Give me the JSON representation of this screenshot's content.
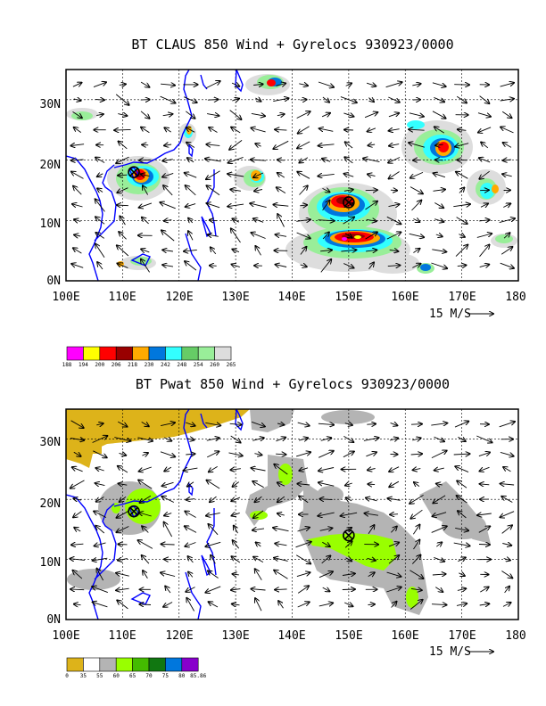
{
  "panels": [
    {
      "title": "BT CLAUS 850 Wind + Gyrelocs 930923/0000",
      "lon_ticks": [
        "100E",
        "110E",
        "120E",
        "130E",
        "140E",
        "150E",
        "160E",
        "170E",
        "180"
      ],
      "lat_ticks": [
        "0N",
        "10N",
        "20N",
        "30N"
      ],
      "wind_ref": "15 M/S",
      "colorbar": {
        "labels": [
          "188",
          "194",
          "200",
          "206",
          "218",
          "230",
          "242",
          "248",
          "254",
          "260",
          "265"
        ],
        "colors": [
          "#ff00ff",
          "#ffff00",
          "#ff0000",
          "#990000",
          "#ffaa00",
          "#0077dd",
          "#33ffff",
          "#66cc66",
          "#99ee99",
          "#dddddd"
        ]
      },
      "gyre_locations": [
        {
          "lon": 112,
          "lat": 18
        },
        {
          "lon": 150,
          "lat": 13
        }
      ]
    },
    {
      "title": "BT Pwat 850 Wind + Gyrelocs 930923/0000",
      "lon_ticks": [
        "100E",
        "110E",
        "120E",
        "130E",
        "140E",
        "150E",
        "160E",
        "170E",
        "180"
      ],
      "lat_ticks": [
        "0N",
        "10N",
        "20N",
        "30N"
      ],
      "wind_ref": "15 M/S",
      "colorbar": {
        "labels": [
          "0",
          "35",
          "55",
          "60",
          "65",
          "70",
          "75",
          "80",
          "85.86"
        ],
        "colors": [
          "#ddb31a",
          "#ffffff",
          "#b4b4b4",
          "#99ff00",
          "#44bb00",
          "#117711",
          "#0077dd",
          "#8800cc"
        ]
      },
      "gyre_locations": [
        {
          "lon": 112,
          "lat": 18
        },
        {
          "lon": 150,
          "lat": 14
        }
      ]
    }
  ],
  "map": {
    "lon_range": [
      100,
      180
    ],
    "lat_range": [
      0,
      35
    ]
  }
}
